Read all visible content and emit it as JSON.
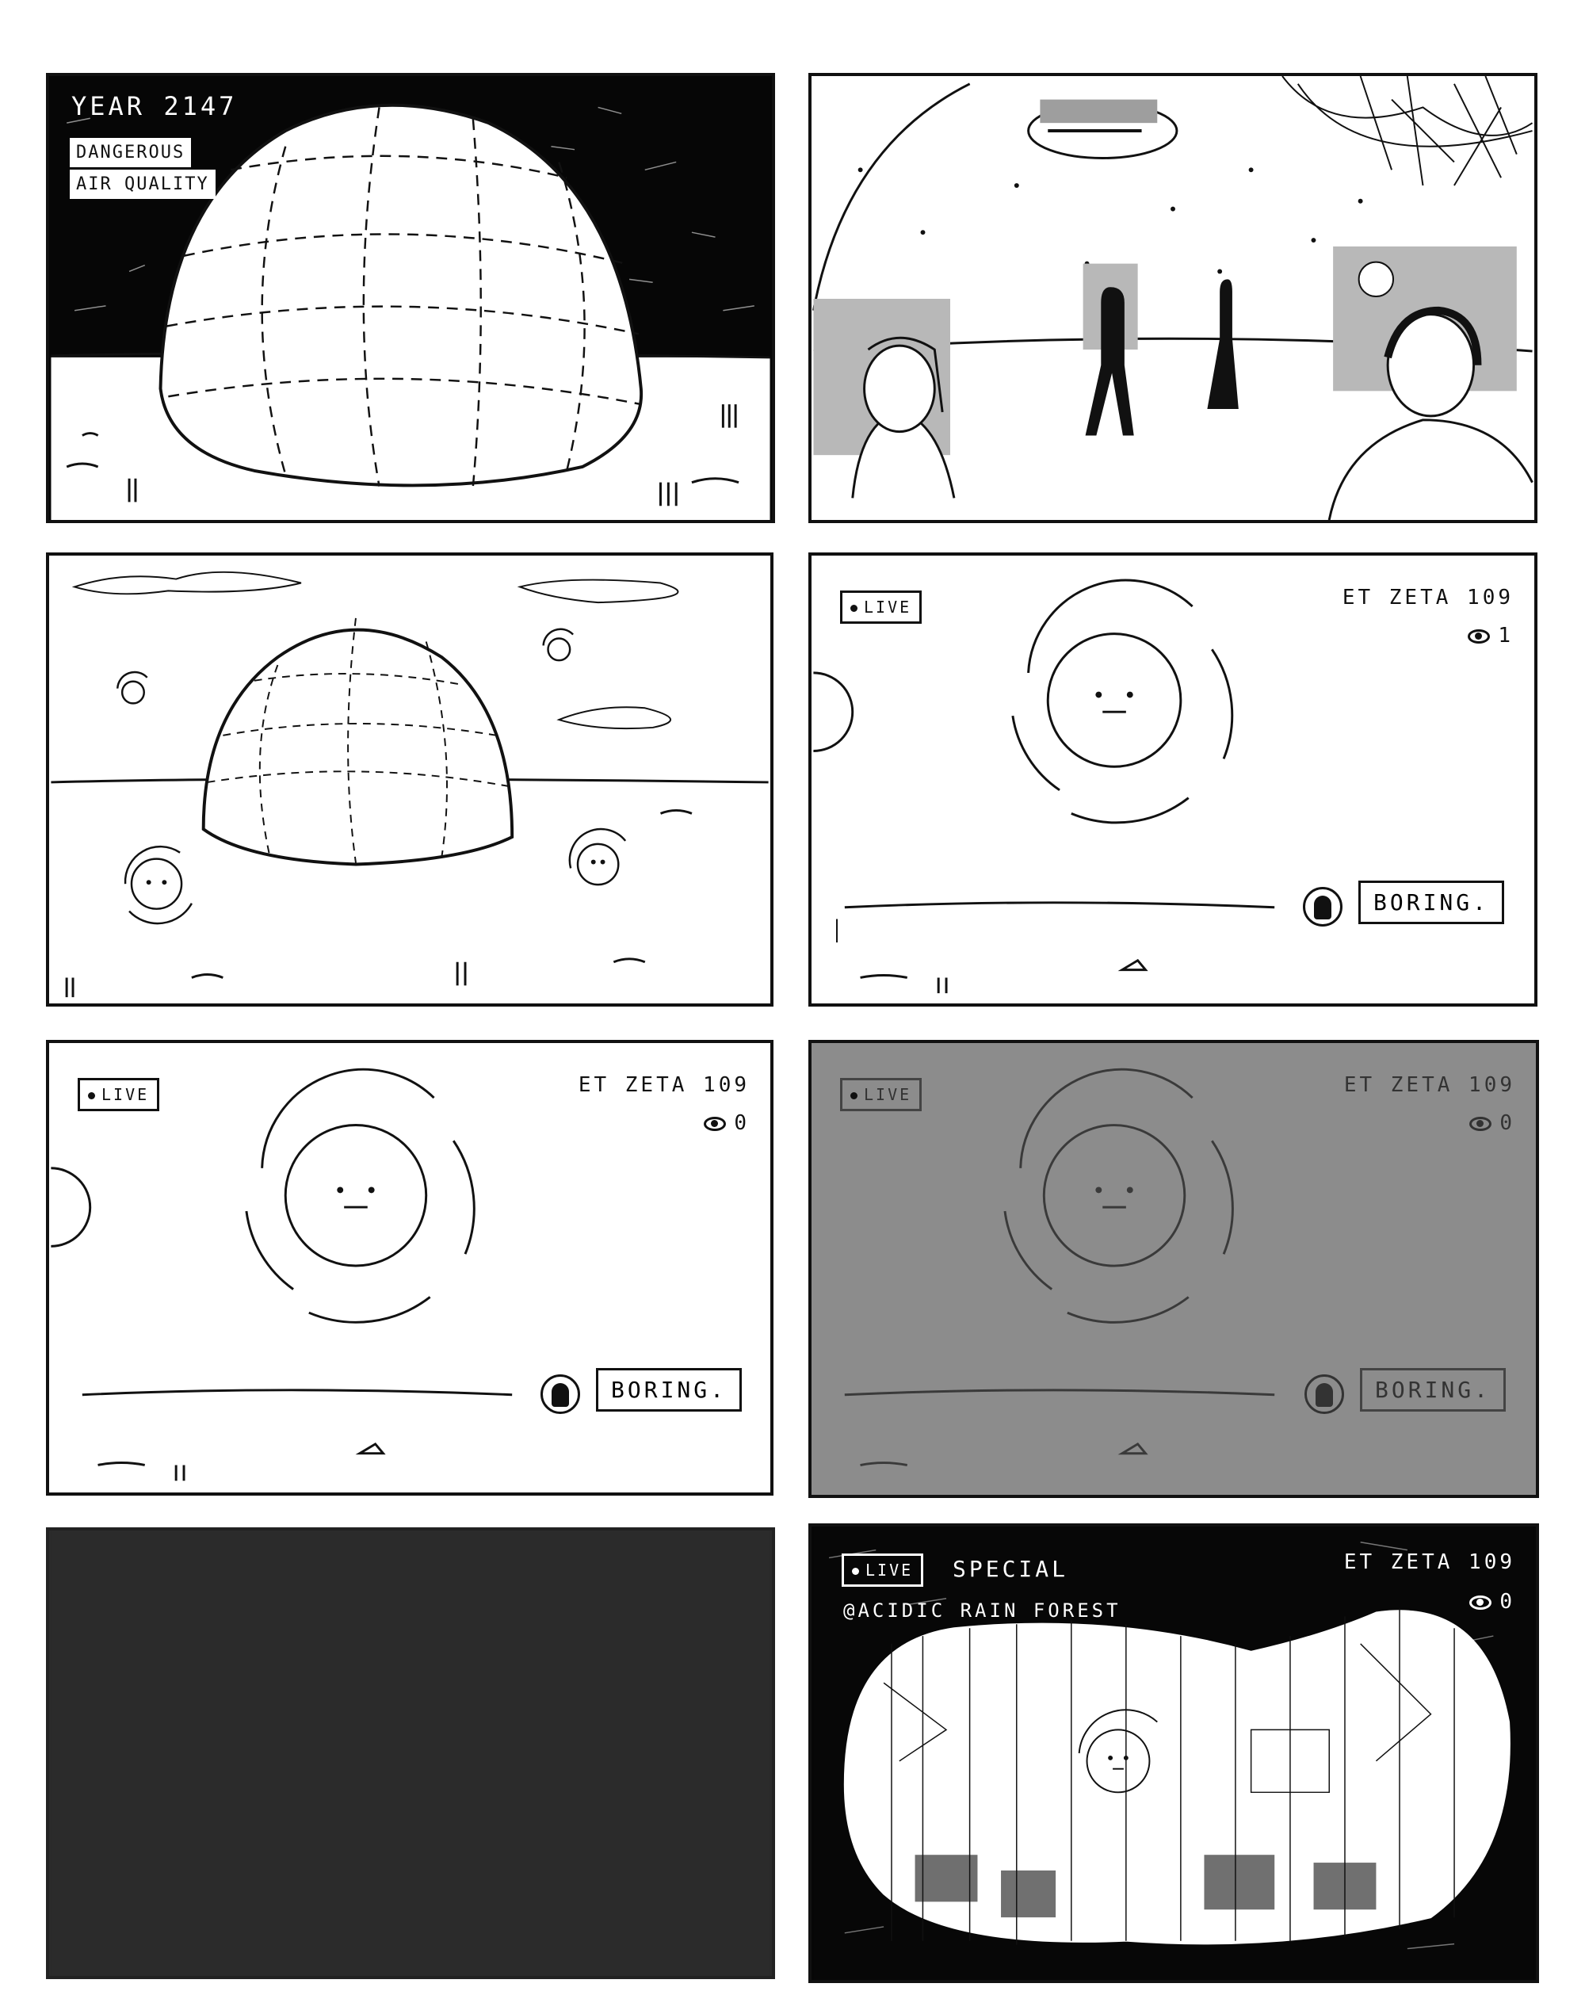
{
  "panels": {
    "p1": {
      "caption_year": "YEAR 2147",
      "warning_line1": "DANGEROUS",
      "warning_line2": "AIR QUALITY"
    },
    "p4": {
      "live_label": "LIVE",
      "channel_name": "ET ZETA 109",
      "viewer_count": "1",
      "comment_text": "BORING."
    },
    "p5": {
      "live_label": "LIVE",
      "channel_name": "ET ZETA 109",
      "viewer_count": "0",
      "comment_text": "BORING."
    },
    "p6": {
      "live_label": "LIVE",
      "channel_name": "ET ZETA 109",
      "viewer_count": "0",
      "comment_text": "BORING."
    },
    "p8": {
      "live_label": "LIVE",
      "special_label": "SPECIAL",
      "location_label": "@ACIDIC RAIN FOREST",
      "channel_name": "ET ZETA 109",
      "viewer_count": "0"
    }
  },
  "colors": {
    "ink": "#111111",
    "paper": "#ffffff",
    "screen_gray": "#8c8c8c",
    "dark_static": "#2b2b2b",
    "screen_shade": "#bdbdbd"
  }
}
